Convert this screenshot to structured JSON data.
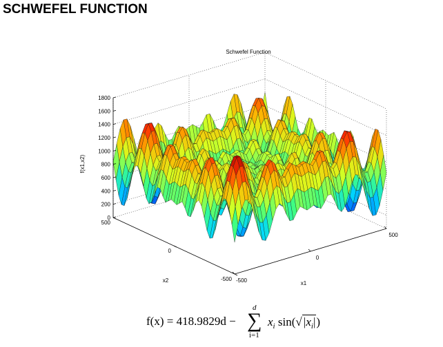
{
  "header": {
    "title": "SCHWEFEL FUNCTION"
  },
  "chart_data": {
    "type": "surface",
    "title": "Schwefel Function",
    "xlabel": "x1",
    "ylabel": "x2",
    "zlabel": "f(x1,x2)",
    "xlim": [
      -500,
      500
    ],
    "ylim": [
      -500,
      500
    ],
    "zlim": [
      0,
      1800
    ],
    "x_ticks": [
      "-500",
      "0",
      "500"
    ],
    "y_ticks": [
      "500",
      "0",
      "-500"
    ],
    "z_ticks": [
      "0",
      "200",
      "400",
      "600",
      "800",
      "1000",
      "1200",
      "1400",
      "1600",
      "1800"
    ],
    "colormap": [
      "#0000b8",
      "#0070ff",
      "#00d8ff",
      "#40ff80",
      "#d8ff20",
      "#ffb000",
      "#ff3000",
      "#a00000"
    ]
  },
  "formula": {
    "lhs": "f(x) = 418.9829d −",
    "sum_top": "d",
    "sum_bottom": "i=1",
    "term_start": "x",
    "term_sub": "i",
    "term_mid": " sin(",
    "sqrt_arg": "|x",
    "sqrt_sub": "i",
    "sqrt_end": "|",
    "term_end": ")"
  }
}
